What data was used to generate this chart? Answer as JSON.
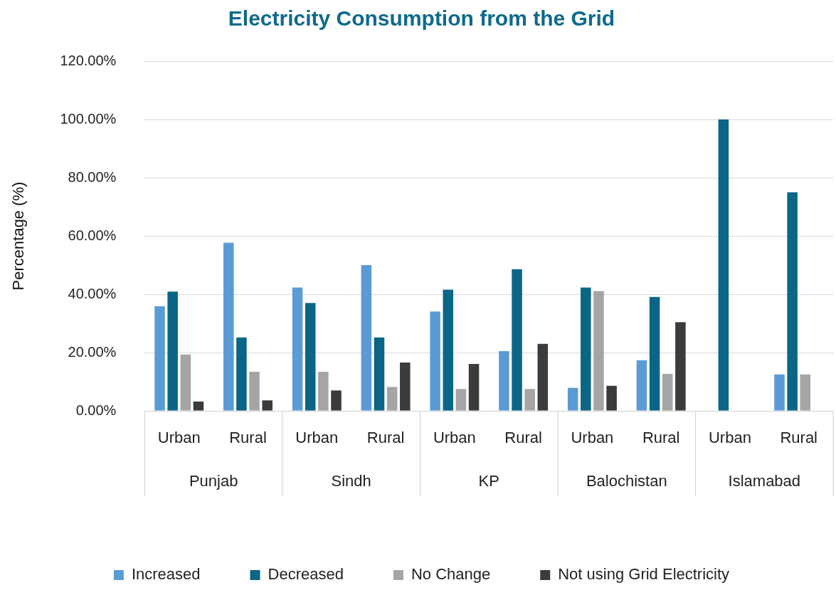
{
  "chart_data": {
    "type": "bar",
    "title": "Electricity Consumption from the Grid",
    "ylabel": "Percentage (%)",
    "categories": [
      "Urban",
      "Rural",
      "Urban",
      "Rural",
      "Urban",
      "Rural",
      "Urban",
      "Rural",
      "Urban",
      "Rural"
    ],
    "annotations": [
      "Punjab",
      "Sindh",
      "KP",
      "Balochistan",
      "Islamabad"
    ],
    "series": [
      {
        "name": "Increased",
        "color": "#5b9bd5",
        "values": [
          35.9,
          57.7,
          42.3,
          50,
          34.1,
          20.5,
          7.9,
          17.4,
          0,
          12.5
        ]
      },
      {
        "name": "Decreased",
        "color": "#0b6587",
        "values": [
          40.9,
          25.2,
          37,
          25.2,
          41.6,
          48.6,
          42.3,
          39.1,
          100,
          75
        ]
      },
      {
        "name": "No Change",
        "color": "#a5a5a5",
        "values": [
          19.3,
          13.4,
          13.4,
          8.2,
          7.5,
          7.5,
          41.1,
          12.7,
          0,
          12.5
        ]
      },
      {
        "name": "Not using Grid Electricity",
        "color": "#3b3b3d",
        "values": [
          3.2,
          3.6,
          7,
          16.6,
          16.1,
          23,
          8.6,
          30.4,
          0,
          0
        ]
      }
    ],
    "ylim": [
      0,
      120
    ],
    "yticks": [
      {
        "value": 0,
        "label": "0.00%"
      },
      {
        "value": 20,
        "label": "20.00%"
      },
      {
        "value": 40,
        "label": "40.00%"
      },
      {
        "value": 60,
        "label": "60.00%"
      },
      {
        "value": 80,
        "label": "80.00%"
      },
      {
        "value": 100,
        "label": "100.00%"
      },
      {
        "value": 120,
        "label": "120.00%"
      }
    ],
    "grid": "y",
    "legend": "bottom"
  }
}
